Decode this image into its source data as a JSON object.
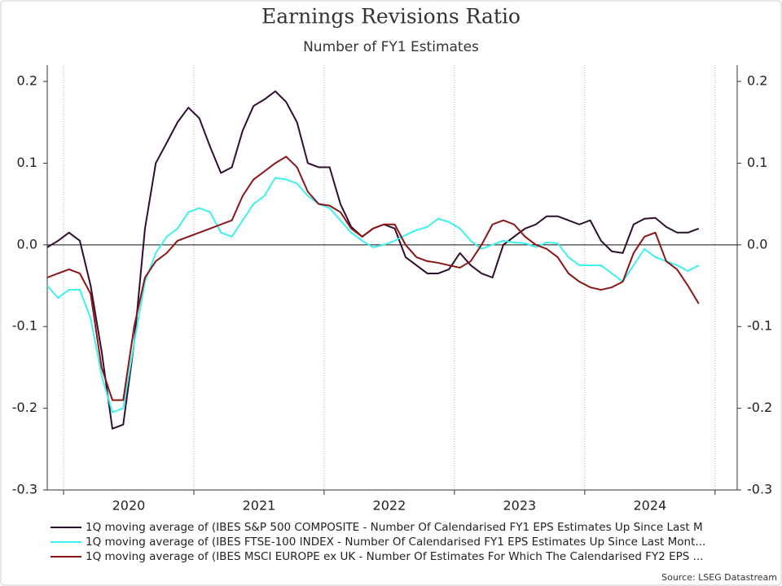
{
  "chart_data": {
    "type": "line",
    "title": "Earnings Revisions Ratio",
    "subtitle": "Number of FY1 Estimates",
    "source": "Source: LSEG Datastream",
    "x": [
      2019.875,
      2019.958,
      2020.042,
      2020.125,
      2020.208,
      2020.292,
      2020.375,
      2020.458,
      2020.542,
      2020.625,
      2020.708,
      2020.792,
      2020.875,
      2020.958,
      2021.042,
      2021.125,
      2021.208,
      2021.292,
      2021.375,
      2021.458,
      2021.542,
      2021.625,
      2021.708,
      2021.792,
      2021.875,
      2021.958,
      2022.042,
      2022.125,
      2022.208,
      2022.292,
      2022.375,
      2022.458,
      2022.542,
      2022.625,
      2022.708,
      2022.792,
      2022.875,
      2022.958,
      2023.042,
      2023.125,
      2023.208,
      2023.292,
      2023.375,
      2023.458,
      2023.542,
      2023.625,
      2023.708,
      2023.792,
      2023.875,
      2023.958,
      2024.042,
      2024.125,
      2024.208,
      2024.292,
      2024.375,
      2024.458,
      2024.542,
      2024.625,
      2024.708,
      2024.792,
      2024.875
    ],
    "series": [
      {
        "name": "1Q moving average of (IBES S&P 500 COMPOSITE - Number Of Calendarised FY1 EPS Estimates Up Since Last M",
        "color": "#2e0f2f",
        "values": [
          -0.003,
          0.005,
          0.015,
          0.005,
          -0.05,
          -0.13,
          -0.225,
          -0.22,
          -0.12,
          0.02,
          0.1,
          0.125,
          0.15,
          0.168,
          0.155,
          0.12,
          0.088,
          0.095,
          0.14,
          0.17,
          0.178,
          0.188,
          0.175,
          0.15,
          0.1,
          0.095,
          0.095,
          0.05,
          0.022,
          0.01,
          0.02,
          0.025,
          0.02,
          -0.015,
          -0.025,
          -0.035,
          -0.035,
          -0.03,
          -0.01,
          -0.025,
          -0.035,
          -0.04,
          0.0,
          0.01,
          0.02,
          0.025,
          0.035,
          0.035,
          0.03,
          0.025,
          0.03,
          0.005,
          -0.008,
          -0.01,
          0.025,
          0.032,
          0.033,
          0.022,
          0.015,
          0.015,
          0.02
        ]
      },
      {
        "name": "1Q moving average of (IBES FTSE-100 INDEX - Number Of Calendarised FY1 EPS Estimates Up Since Last Mont...",
        "color": "#3ef0ee",
        "values": [
          -0.05,
          -0.065,
          -0.055,
          -0.055,
          -0.09,
          -0.16,
          -0.205,
          -0.2,
          -0.12,
          -0.045,
          -0.01,
          0.01,
          0.02,
          0.04,
          0.045,
          0.04,
          0.015,
          0.01,
          0.03,
          0.05,
          0.06,
          0.082,
          0.08,
          0.075,
          0.06,
          0.05,
          0.045,
          0.03,
          0.015,
          0.005,
          -0.003,
          0.0,
          0.005,
          0.012,
          0.018,
          0.022,
          0.032,
          0.028,
          0.02,
          0.005,
          -0.005,
          0.0,
          0.005,
          0.003,
          0.002,
          -0.003,
          0.003,
          0.002,
          -0.015,
          -0.025,
          -0.025,
          -0.025,
          -0.035,
          -0.045,
          -0.025,
          -0.005,
          -0.015,
          -0.02,
          -0.025,
          -0.032,
          -0.025
        ]
      },
      {
        "name": "1Q moving average of (IBES MSCI EUROPE ex UK - Number Of Estimates For Which The Calendarised FY2 EPS ...",
        "color": "#8b1515",
        "values": [
          -0.04,
          -0.035,
          -0.03,
          -0.035,
          -0.06,
          -0.15,
          -0.19,
          -0.19,
          -0.1,
          -0.04,
          -0.02,
          -0.01,
          0.005,
          0.01,
          0.015,
          0.02,
          0.025,
          0.03,
          0.06,
          0.08,
          0.09,
          0.1,
          0.108,
          0.095,
          0.065,
          0.05,
          0.048,
          0.04,
          0.02,
          0.01,
          0.02,
          0.025,
          0.025,
          0.0,
          -0.015,
          -0.02,
          -0.022,
          -0.025,
          -0.028,
          -0.02,
          0.0,
          0.025,
          0.03,
          0.025,
          0.01,
          0.0,
          -0.005,
          -0.015,
          -0.035,
          -0.045,
          -0.052,
          -0.055,
          -0.052,
          -0.045,
          -0.01,
          0.01,
          0.015,
          -0.02,
          -0.03,
          -0.05,
          -0.072
        ]
      }
    ],
    "xlim": [
      2019.875,
      2025.17
    ],
    "xticks": [
      {
        "value": 2020.5,
        "label": "2020"
      },
      {
        "value": 2021.5,
        "label": "2021"
      },
      {
        "value": 2022.5,
        "label": "2022"
      },
      {
        "value": 2023.5,
        "label": "2023"
      },
      {
        "value": 2024.5,
        "label": "2024"
      }
    ],
    "xgrid": [
      2020,
      2021,
      2022,
      2023,
      2024,
      2025
    ],
    "ylim": [
      -0.3,
      0.22
    ],
    "yticks": [
      0.2,
      0.1,
      {
        "value": 0,
        "label": "0.0"
      },
      -0.1,
      -0.2,
      -0.3
    ],
    "y2lim": [
      -0.3,
      0.22
    ],
    "y2ticks": [
      0.2,
      0.1,
      {
        "value": 0,
        "label": "0.0"
      },
      -0.1,
      -0.2,
      -0.3
    ],
    "zero_line": true,
    "legend": "bottom"
  }
}
